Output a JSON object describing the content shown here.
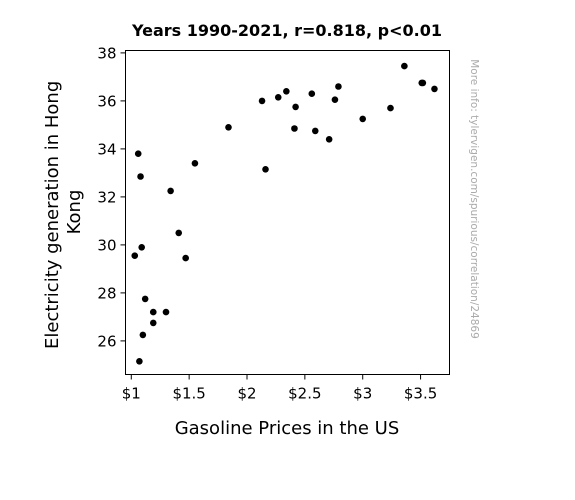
{
  "chart_data": {
    "type": "scatter",
    "title": "Years 1990-2021, r=0.818, p<0.01",
    "xlabel": "Gasoline Prices in the US",
    "ylabel_lines": [
      "Electricity generation in Hong",
      "Kong"
    ],
    "watermark": "More info: tylervigen.com/spurious/correlation/24869",
    "xlim": [
      0.95,
      3.75
    ],
    "ylim": [
      24.6,
      38.1
    ],
    "x_ticks": [
      {
        "value": 1.0,
        "label": "$1"
      },
      {
        "value": 1.5,
        "label": "$1.5"
      },
      {
        "value": 2.0,
        "label": "$2"
      },
      {
        "value": 2.5,
        "label": "$2.5"
      },
      {
        "value": 3.0,
        "label": "$3"
      },
      {
        "value": 3.5,
        "label": "$3.5"
      }
    ],
    "y_ticks": [
      {
        "value": 26,
        "label": "26"
      },
      {
        "value": 28,
        "label": "28"
      },
      {
        "value": 30,
        "label": "30"
      },
      {
        "value": 32,
        "label": "32"
      },
      {
        "value": 34,
        "label": "34"
      },
      {
        "value": 36,
        "label": "36"
      },
      {
        "value": 38,
        "label": "38"
      }
    ],
    "grid": false,
    "point_color": "#000000",
    "points": [
      {
        "x": 1.03,
        "y": 29.55
      },
      {
        "x": 1.06,
        "y": 33.8
      },
      {
        "x": 1.07,
        "y": 25.15
      },
      {
        "x": 1.08,
        "y": 32.85
      },
      {
        "x": 1.09,
        "y": 29.9
      },
      {
        "x": 1.1,
        "y": 26.25
      },
      {
        "x": 1.12,
        "y": 27.75
      },
      {
        "x": 1.19,
        "y": 27.2
      },
      {
        "x": 1.19,
        "y": 26.75
      },
      {
        "x": 1.3,
        "y": 27.2
      },
      {
        "x": 1.34,
        "y": 32.25
      },
      {
        "x": 1.41,
        "y": 30.5
      },
      {
        "x": 1.47,
        "y": 29.45
      },
      {
        "x": 1.55,
        "y": 33.4
      },
      {
        "x": 1.84,
        "y": 34.9
      },
      {
        "x": 2.13,
        "y": 36.0
      },
      {
        "x": 2.16,
        "y": 33.15
      },
      {
        "x": 2.27,
        "y": 36.15
      },
      {
        "x": 2.34,
        "y": 36.4
      },
      {
        "x": 2.41,
        "y": 34.85
      },
      {
        "x": 2.42,
        "y": 35.75
      },
      {
        "x": 2.56,
        "y": 36.3
      },
      {
        "x": 2.59,
        "y": 34.75
      },
      {
        "x": 2.71,
        "y": 34.4
      },
      {
        "x": 2.76,
        "y": 36.05
      },
      {
        "x": 2.79,
        "y": 36.6
      },
      {
        "x": 3.0,
        "y": 35.25
      },
      {
        "x": 3.24,
        "y": 35.7
      },
      {
        "x": 3.36,
        "y": 37.45
      },
      {
        "x": 3.51,
        "y": 36.75
      },
      {
        "x": 3.52,
        "y": 36.75
      },
      {
        "x": 3.62,
        "y": 36.5
      }
    ]
  }
}
